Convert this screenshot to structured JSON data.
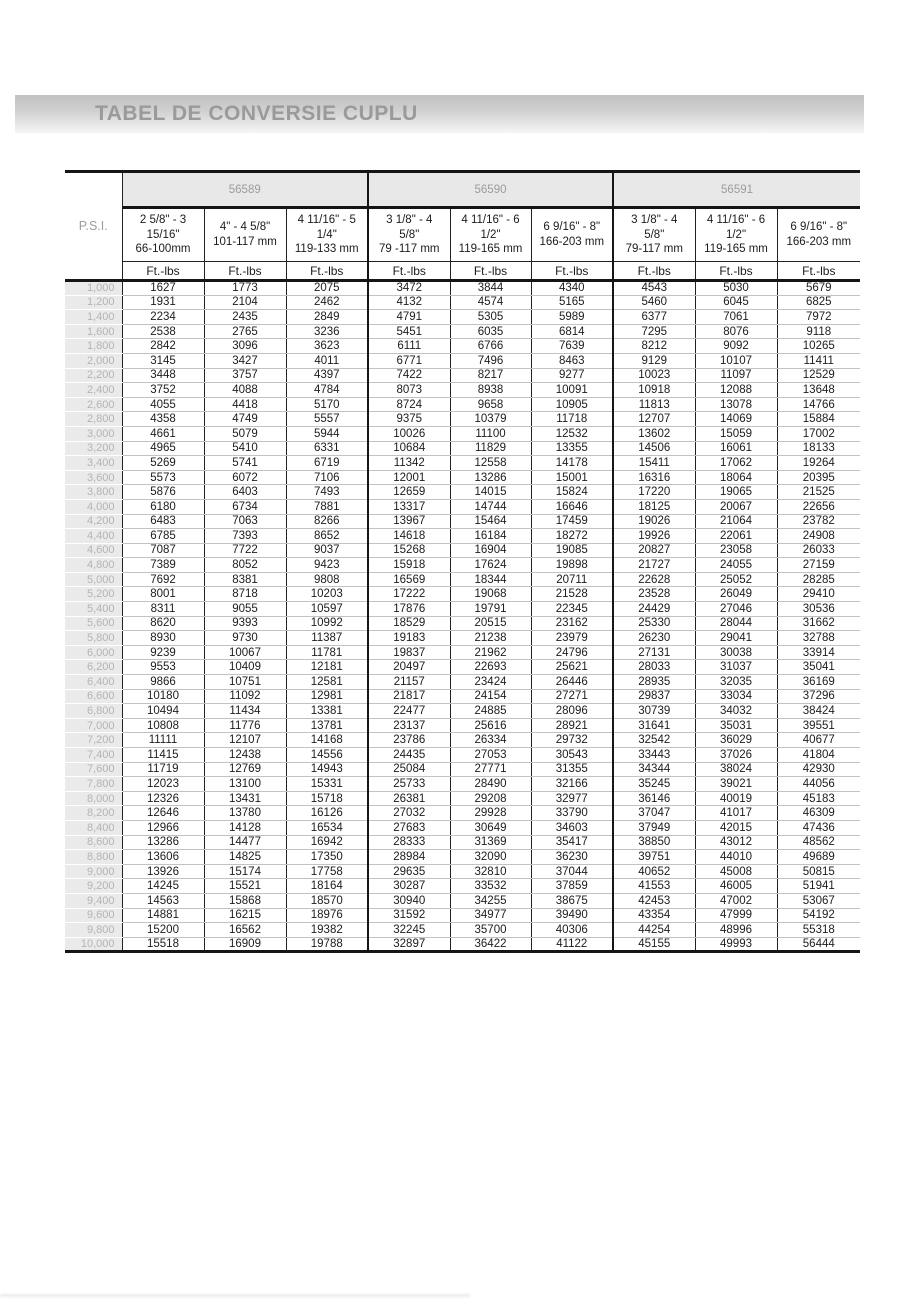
{
  "title": "TABEL DE CONVERSIE CUPLU",
  "colors": {
    "title_text": "#9a9a9a",
    "band_top": "#c1c1c1",
    "band_bottom": "#f6f6f6",
    "model_bg": "#e8e8e8",
    "model_text": "#9c9c9c",
    "psi_bg": "#eaeaea",
    "psi_text": "#b4b4b4",
    "border_black": "#151515",
    "row_separator": "#c2c2c2",
    "data_text": "#1c1c1c"
  },
  "table": {
    "psi_label": "P.S.I.",
    "unit_label": "Ft.-lbs",
    "groups": [
      {
        "model": "56589",
        "columns": [
          [
            "2 5/8\" - 3",
            "15/16\"",
            "66-100mm"
          ],
          [
            "4\" - 4 5/8\"",
            "101-117 mm"
          ],
          [
            "4 11/16\" - 5",
            "1/4\"",
            "119-133 mm"
          ]
        ]
      },
      {
        "model": "56590",
        "columns": [
          [
            "3 1/8\" - 4",
            "5/8\"",
            "79 -117 mm"
          ],
          [
            "4 11/16\" - 6",
            "1/2\"",
            "119-165 mm"
          ],
          [
            "6 9/16\" - 8\"",
            "166-203 mm"
          ]
        ]
      },
      {
        "model": "56591",
        "columns": [
          [
            "3 1/8\" - 4",
            "5/8\"",
            "79-117 mm"
          ],
          [
            "4 11/16\" - 6",
            "1/2\"",
            "119-165 mm"
          ],
          [
            "6 9/16\" - 8\"",
            "166-203 mm"
          ]
        ]
      }
    ],
    "rows": [
      {
        "psi": "1,000",
        "values": [
          1627,
          1773,
          2075,
          3472,
          3844,
          4340,
          4543,
          5030,
          5679
        ]
      },
      {
        "psi": "1,200",
        "values": [
          1931,
          2104,
          2462,
          4132,
          4574,
          5165,
          5460,
          6045,
          6825
        ]
      },
      {
        "psi": "1,400",
        "values": [
          2234,
          2435,
          2849,
          4791,
          5305,
          5989,
          6377,
          7061,
          7972
        ]
      },
      {
        "psi": "1,600",
        "values": [
          2538,
          2765,
          3236,
          5451,
          6035,
          6814,
          7295,
          8076,
          9118
        ]
      },
      {
        "psi": "1,800",
        "values": [
          2842,
          3096,
          3623,
          6111,
          6766,
          7639,
          8212,
          9092,
          10265
        ]
      },
      {
        "psi": "2,000",
        "values": [
          3145,
          3427,
          4011,
          6771,
          7496,
          8463,
          9129,
          10107,
          11411
        ]
      },
      {
        "psi": "2,200",
        "values": [
          3448,
          3757,
          4397,
          7422,
          8217,
          9277,
          10023,
          11097,
          12529
        ]
      },
      {
        "psi": "2,400",
        "values": [
          3752,
          4088,
          4784,
          8073,
          8938,
          10091,
          10918,
          12088,
          13648
        ]
      },
      {
        "psi": "2,600",
        "values": [
          4055,
          4418,
          5170,
          8724,
          9658,
          10905,
          11813,
          13078,
          14766
        ]
      },
      {
        "psi": "2,800",
        "values": [
          4358,
          4749,
          5557,
          9375,
          10379,
          11718,
          12707,
          14069,
          15884
        ]
      },
      {
        "psi": "3,000",
        "values": [
          4661,
          5079,
          5944,
          10026,
          11100,
          12532,
          13602,
          15059,
          17002
        ]
      },
      {
        "psi": "3,200",
        "values": [
          4965,
          5410,
          6331,
          10684,
          11829,
          13355,
          14506,
          16061,
          18133
        ]
      },
      {
        "psi": "3,400",
        "values": [
          5269,
          5741,
          6719,
          11342,
          12558,
          14178,
          15411,
          17062,
          19264
        ]
      },
      {
        "psi": "3,600",
        "values": [
          5573,
          6072,
          7106,
          12001,
          13286,
          15001,
          16316,
          18064,
          20395
        ]
      },
      {
        "psi": "3,800",
        "values": [
          5876,
          6403,
          7493,
          12659,
          14015,
          15824,
          17220,
          19065,
          21525
        ]
      },
      {
        "psi": "4,000",
        "values": [
          6180,
          6734,
          7881,
          13317,
          14744,
          16646,
          18125,
          20067,
          22656
        ]
      },
      {
        "psi": "4,200",
        "values": [
          6483,
          7063,
          8266,
          13967,
          15464,
          17459,
          19026,
          21064,
          23782
        ]
      },
      {
        "psi": "4,400",
        "values": [
          6785,
          7393,
          8652,
          14618,
          16184,
          18272,
          19926,
          22061,
          24908
        ]
      },
      {
        "psi": "4,600",
        "values": [
          7087,
          7722,
          9037,
          15268,
          16904,
          19085,
          20827,
          23058,
          26033
        ]
      },
      {
        "psi": "4,800",
        "values": [
          7389,
          8052,
          9423,
          15918,
          17624,
          19898,
          21727,
          24055,
          27159
        ]
      },
      {
        "psi": "5,000",
        "values": [
          7692,
          8381,
          9808,
          16569,
          18344,
          20711,
          22628,
          25052,
          28285
        ]
      },
      {
        "psi": "5,200",
        "values": [
          8001,
          8718,
          10203,
          17222,
          19068,
          21528,
          23528,
          26049,
          29410
        ]
      },
      {
        "psi": "5,400",
        "values": [
          8311,
          9055,
          10597,
          17876,
          19791,
          22345,
          24429,
          27046,
          30536
        ]
      },
      {
        "psi": "5,600",
        "values": [
          8620,
          9393,
          10992,
          18529,
          20515,
          23162,
          25330,
          28044,
          31662
        ]
      },
      {
        "psi": "5,800",
        "values": [
          8930,
          9730,
          11387,
          19183,
          21238,
          23979,
          26230,
          29041,
          32788
        ]
      },
      {
        "psi": "6,000",
        "values": [
          9239,
          10067,
          11781,
          19837,
          21962,
          24796,
          27131,
          30038,
          33914
        ]
      },
      {
        "psi": "6,200",
        "values": [
          9553,
          10409,
          12181,
          20497,
          22693,
          25621,
          28033,
          31037,
          35041
        ]
      },
      {
        "psi": "6,400",
        "values": [
          9866,
          10751,
          12581,
          21157,
          23424,
          26446,
          28935,
          32035,
          36169
        ]
      },
      {
        "psi": "6,600",
        "values": [
          10180,
          11092,
          12981,
          21817,
          24154,
          27271,
          29837,
          33034,
          37296
        ]
      },
      {
        "psi": "6,800",
        "values": [
          10494,
          11434,
          13381,
          22477,
          24885,
          28096,
          30739,
          34032,
          38424
        ]
      },
      {
        "psi": "7,000",
        "values": [
          10808,
          11776,
          13781,
          23137,
          25616,
          28921,
          31641,
          35031,
          39551
        ]
      },
      {
        "psi": "7,200",
        "values": [
          11111,
          12107,
          14168,
          23786,
          26334,
          29732,
          32542,
          36029,
          40677
        ]
      },
      {
        "psi": "7,400",
        "values": [
          11415,
          12438,
          14556,
          24435,
          27053,
          30543,
          33443,
          37026,
          41804
        ]
      },
      {
        "psi": "7,600",
        "values": [
          11719,
          12769,
          14943,
          25084,
          27771,
          31355,
          34344,
          38024,
          42930
        ]
      },
      {
        "psi": "7,800",
        "values": [
          12023,
          13100,
          15331,
          25733,
          28490,
          32166,
          35245,
          39021,
          44056
        ]
      },
      {
        "psi": "8,000",
        "values": [
          12326,
          13431,
          15718,
          26381,
          29208,
          32977,
          36146,
          40019,
          45183
        ]
      },
      {
        "psi": "8,200",
        "values": [
          12646,
          13780,
          16126,
          27032,
          29928,
          33790,
          37047,
          41017,
          46309
        ]
      },
      {
        "psi": "8,400",
        "values": [
          12966,
          14128,
          16534,
          27683,
          30649,
          34603,
          37949,
          42015,
          47436
        ]
      },
      {
        "psi": "8,600",
        "values": [
          13286,
          14477,
          16942,
          28333,
          31369,
          35417,
          38850,
          43012,
          48562
        ]
      },
      {
        "psi": "8,800",
        "values": [
          13606,
          14825,
          17350,
          28984,
          32090,
          36230,
          39751,
          44010,
          49689
        ]
      },
      {
        "psi": "9,000",
        "values": [
          13926,
          15174,
          17758,
          29635,
          32810,
          37044,
          40652,
          45008,
          50815
        ]
      },
      {
        "psi": "9,200",
        "values": [
          14245,
          15521,
          18164,
          30287,
          33532,
          37859,
          41553,
          46005,
          51941
        ]
      },
      {
        "psi": "9,400",
        "values": [
          14563,
          15868,
          18570,
          30940,
          34255,
          38675,
          42453,
          47002,
          53067
        ]
      },
      {
        "psi": "9,600",
        "values": [
          14881,
          16215,
          18976,
          31592,
          34977,
          39490,
          43354,
          47999,
          54192
        ]
      },
      {
        "psi": "9,800",
        "values": [
          15200,
          16562,
          19382,
          32245,
          35700,
          40306,
          44254,
          48996,
          55318
        ]
      },
      {
        "psi": "10,000",
        "values": [
          15518,
          16909,
          19788,
          32897,
          36422,
          41122,
          45155,
          49993,
          56444
        ]
      }
    ]
  }
}
